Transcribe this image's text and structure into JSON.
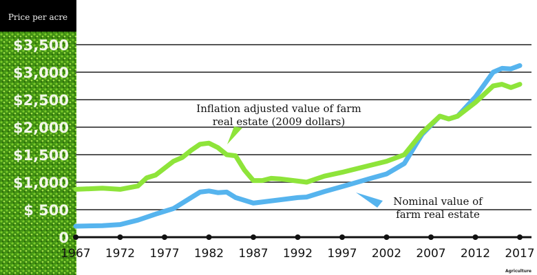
{
  "chart_data": {
    "type": "line",
    "ylabel": "Price per acre",
    "ylim": [
      0,
      3500
    ],
    "xlim": [
      1967,
      2017
    ],
    "grid": true,
    "y_ticks": [
      "0",
      "$ 500",
      "$1,000",
      "$1,500",
      "$2,000",
      "$2,500",
      "$3,000",
      "$3,500"
    ],
    "y_tick_values": [
      0,
      500,
      1000,
      1500,
      2000,
      2500,
      3000,
      3500
    ],
    "x_ticks": [
      "1967",
      "1972",
      "1977",
      "1982",
      "1987",
      "1992",
      "1997",
      "2002",
      "2007",
      "2012",
      "2017"
    ],
    "x_tick_values": [
      1967,
      1972,
      1977,
      1982,
      1987,
      1992,
      1997,
      2002,
      2007,
      2012,
      2017
    ],
    "series": [
      {
        "name": "Inflation adjusted value of farm real estate (2009 dollars)",
        "color": "#8ee43a",
        "x": [
          1967,
          1970,
          1972,
          1974,
          1975,
          1976,
          1978,
          1979,
          1980,
          1981,
          1982,
          1983,
          1984,
          1985,
          1986,
          1987,
          1988,
          1989,
          1990,
          1992,
          1993,
          1995,
          1997,
          2000,
          2002,
          2004,
          2006,
          2008,
          2009,
          2010,
          2012,
          2014,
          2015,
          2016,
          2017
        ],
        "y": [
          870,
          890,
          870,
          930,
          1080,
          1130,
          1380,
          1450,
          1580,
          1690,
          1710,
          1630,
          1500,
          1480,
          1220,
          1030,
          1030,
          1070,
          1060,
          1020,
          1000,
          1110,
          1180,
          1300,
          1380,
          1500,
          1900,
          2200,
          2150,
          2200,
          2450,
          2750,
          2780,
          2720,
          2780
        ]
      },
      {
        "name": "Nominal value of farm real estate",
        "color": "#56b4ee",
        "x": [
          1967,
          1970,
          1972,
          1974,
          1976,
          1978,
          1980,
          1981,
          1982,
          1983,
          1984,
          1985,
          1987,
          1990,
          1992,
          1993,
          1995,
          1997,
          2000,
          2002,
          2004,
          2006,
          2008,
          2009,
          2010,
          2012,
          2014,
          2015,
          2016,
          2017
        ],
        "y": [
          200,
          210,
          230,
          310,
          420,
          520,
          720,
          820,
          840,
          810,
          820,
          720,
          620,
          680,
          720,
          730,
          830,
          920,
          1060,
          1150,
          1340,
          1870,
          2200,
          2150,
          2200,
          2550,
          3000,
          3070,
          3060,
          3120
        ]
      }
    ],
    "annotations": [
      {
        "line1": "Inflation adjusted value of farm",
        "line2": "real estate (2009 dollars)"
      },
      {
        "line1": "Nominal value of",
        "line2": "farm real estate"
      }
    ],
    "credit": "Agriculture"
  }
}
